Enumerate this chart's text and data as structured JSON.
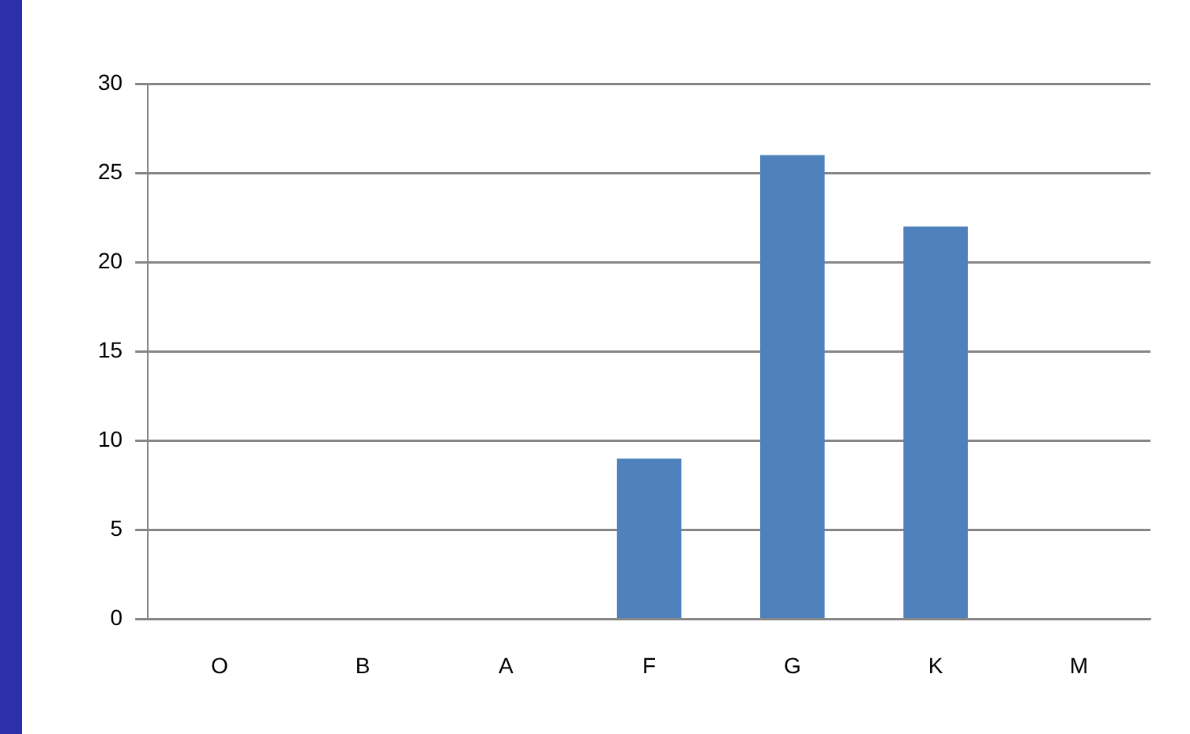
{
  "chart_data": {
    "type": "bar",
    "categories": [
      "O",
      "B",
      "A",
      "F",
      "G",
      "K",
      "M"
    ],
    "values": [
      0,
      0,
      0,
      9,
      26,
      22,
      0
    ],
    "color": "#4f81bd",
    "ylim": [
      0,
      30
    ],
    "yticks": [
      0,
      5,
      10,
      15,
      20,
      25,
      30
    ],
    "grid": "y",
    "legend": false
  }
}
